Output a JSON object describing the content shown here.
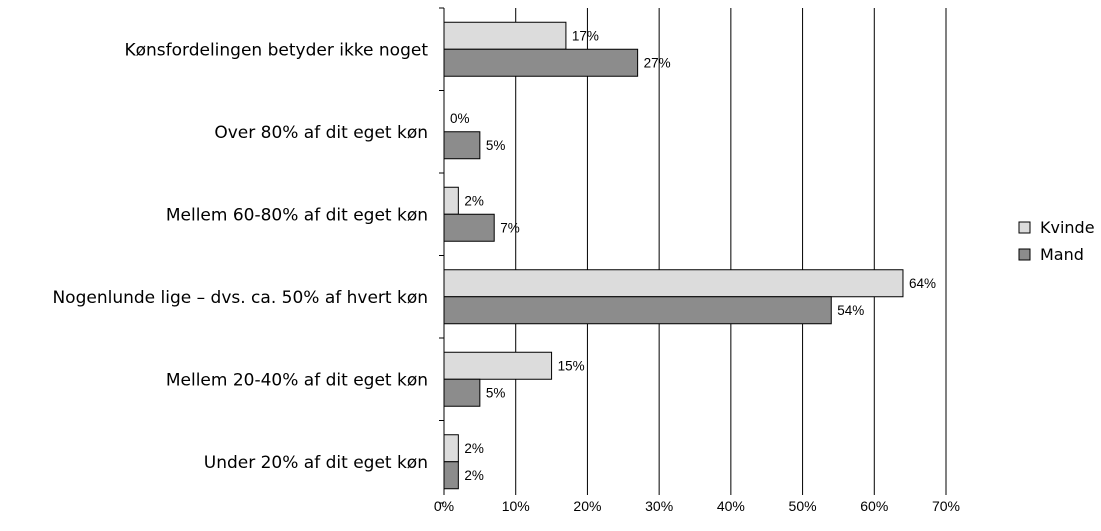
{
  "chart_data": {
    "type": "bar",
    "orientation": "horizontal",
    "categories": [
      "Kønsfordelingen betyder ikke noget",
      "Over 80% af dit eget køn",
      "Mellem 60-80% af dit eget køn",
      "Nogenlunde lige – dvs. ca. 50% af hvert køn",
      "Mellem 20-40% af dit eget køn",
      "Under 20% af dit eget køn"
    ],
    "series": [
      {
        "name": "Kvinde",
        "color": "#dcdcdc",
        "values": [
          17,
          0,
          2,
          64,
          15,
          2
        ],
        "labels": [
          "17%",
          "0%",
          "2%",
          "64%",
          "15%",
          "2%"
        ]
      },
      {
        "name": "Mand",
        "color": "#8c8c8c",
        "values": [
          27,
          5,
          7,
          54,
          5,
          2
        ],
        "labels": [
          "27%",
          "5%",
          "7%",
          "54%",
          "5%",
          "2%"
        ]
      }
    ],
    "xlim": [
      0,
      70
    ],
    "xticks": [
      "0%",
      "10%",
      "20%",
      "30%",
      "40%",
      "50%",
      "60%",
      "70%"
    ],
    "grid": true,
    "legend_position": "right"
  }
}
